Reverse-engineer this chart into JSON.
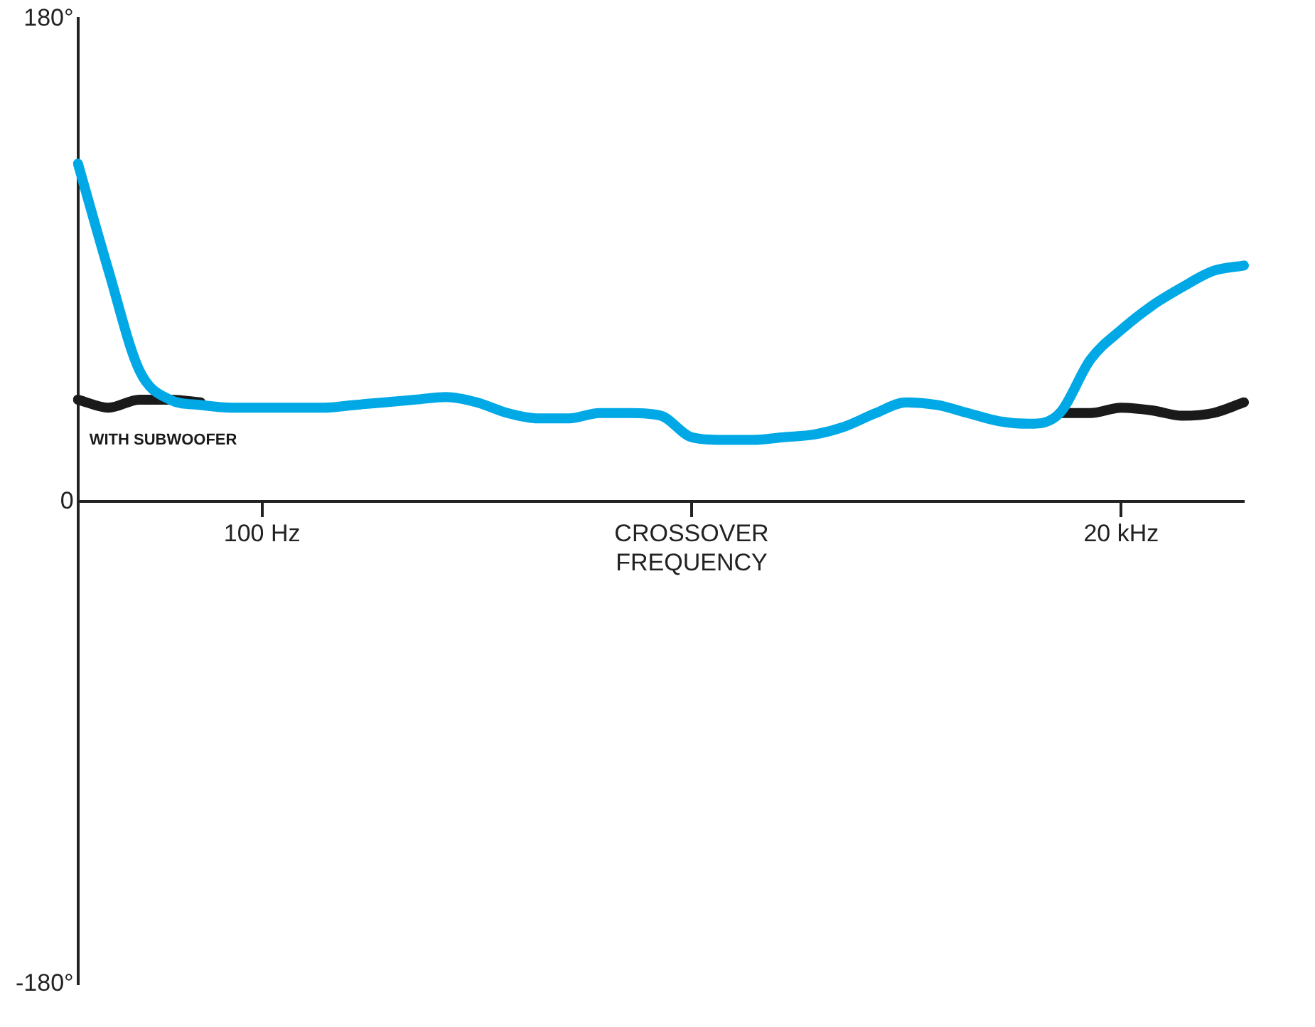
{
  "chart_data": {
    "type": "line",
    "ylim": [
      -180,
      180
    ],
    "yticks": [
      {
        "value": -180,
        "label": "-180°"
      },
      0,
      {
        "value": 180,
        "label": "180°"
      }
    ],
    "categories": [
      null,
      null,
      null,
      null,
      null,
      null,
      "100 Hz",
      null,
      null,
      null,
      null,
      null,
      null,
      null,
      null,
      null,
      null,
      null,
      null,
      null,
      "CROSSOVER FREQUENCY",
      null,
      null,
      null,
      null,
      null,
      null,
      null,
      null,
      null,
      null,
      null,
      null,
      null,
      "20 kHz",
      null,
      null,
      null,
      null
    ],
    "grid": false,
    "legend": false,
    "marker": "none",
    "line_style": "solid",
    "annotations": [
      "WITH SUBWOOFER"
    ],
    "series": [
      {
        "color": "#1a1a1a",
        "values": [
          38,
          35,
          38,
          38,
          37,
          null,
          null,
          null,
          null,
          null,
          null,
          null,
          null,
          null,
          null,
          null,
          null,
          null,
          null,
          null,
          null,
          null,
          null,
          null,
          null,
          null,
          null,
          null,
          null,
          null,
          null,
          null,
          33,
          33,
          35,
          34,
          32,
          33,
          37
        ]
      },
      {
        "color": "#00a9e6",
        "values": [
          126,
          86,
          49,
          38,
          36,
          35,
          35,
          35,
          35,
          36,
          37,
          38,
          39,
          37,
          33,
          31,
          31,
          33,
          33,
          32,
          24,
          23,
          23,
          24,
          25,
          28,
          33,
          37,
          36,
          33,
          30,
          29,
          33,
          53,
          64,
          73,
          80,
          86,
          88
        ]
      }
    ]
  }
}
